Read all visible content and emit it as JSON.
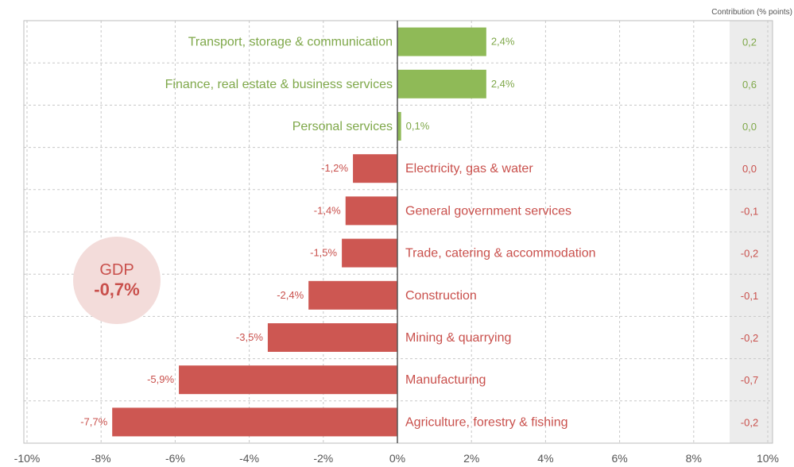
{
  "colors": {
    "positive": "#8fba57",
    "negative": "#cd5752",
    "positive_text": "#7fa84a",
    "negative_text": "#c9504c",
    "contribution_panel": "#ececec",
    "grid": "#c8c8c8"
  },
  "contribution_header": "Contribution (% points)",
  "gdp": {
    "label": "GDP",
    "value": "-0,7%"
  },
  "chart_data": {
    "type": "bar",
    "orientation": "horizontal",
    "categories": [
      "Transport, storage & communication",
      "Finance, real estate & business services",
      "Personal services",
      "Electricity, gas & water",
      "General government services",
      "Trade, catering & accommodation",
      "Construction",
      "Mining & quarrying",
      "Manufacturing",
      "Agriculture, forestry & fishing"
    ],
    "values": [
      2.4,
      2.4,
      0.1,
      -1.2,
      -1.4,
      -1.5,
      -2.4,
      -3.5,
      -5.9,
      -7.7
    ],
    "value_labels": [
      "2,4%",
      "2,4%",
      "0,1%",
      "-1,2%",
      "-1,4%",
      "-1,5%",
      "-2,4%",
      "-3,5%",
      "-5,9%",
      "-7,7%"
    ],
    "contributions": [
      "0,2",
      "0,6",
      "0,0",
      "0,0",
      "-0,1",
      "-0,2",
      "-0,1",
      "-0,2",
      "-0,7",
      "-0,2"
    ],
    "xlim": [
      -10,
      10
    ],
    "x_ticks": [
      -10,
      -8,
      -6,
      -4,
      -2,
      0,
      2,
      4,
      6,
      8,
      10
    ],
    "x_tick_labels": [
      "-10%",
      "-8%",
      "-6%",
      "-4%",
      "-2%",
      "0%",
      "2%",
      "4%",
      "6%",
      "8%",
      "10%"
    ],
    "grid": true
  }
}
